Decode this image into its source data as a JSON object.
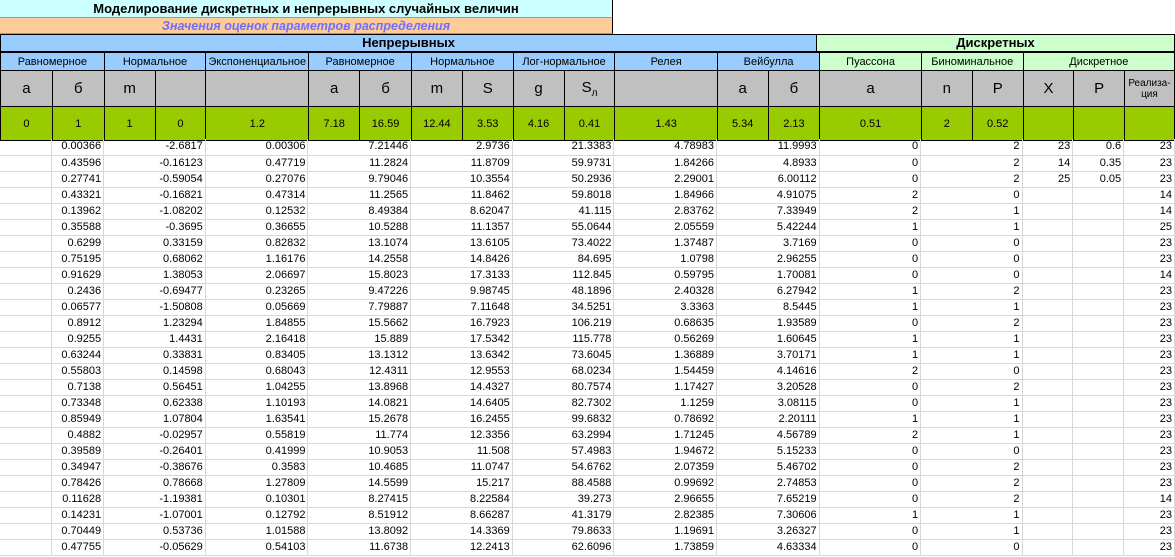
{
  "title": "Моделирование дискретных и непрерывных случайных величин",
  "subtitle": "Значения оценок параметров распределения",
  "groups": {
    "continuous": "Непрерывных",
    "discrete": "Дискретных"
  },
  "distributions": [
    "Равномерное",
    "Нормальное",
    "Экспоненциальное",
    "Равномерное",
    "Нормальное",
    "Лог-нормальное",
    "Релея",
    "Вейбулла",
    "Пуассона",
    "Биноминальное",
    "Дискретное"
  ],
  "params": [
    "a",
    "б",
    "m",
    "",
    "",
    "a",
    "б",
    "m",
    "S",
    "g",
    "Sл",
    "",
    "a",
    "б",
    "a",
    "n",
    "P",
    "X",
    "P",
    "Реализа-ция"
  ],
  "param_values": [
    "0",
    "1",
    "1",
    "0",
    "1.2",
    "7.18",
    "16.59",
    "12.44",
    "3.53",
    "4.16",
    "0.41",
    "1.43",
    "5.34",
    "2.13",
    "0.51",
    "2",
    "0.52"
  ],
  "rows": [
    [
      "",
      "0.00366",
      "-2.6817",
      "0.00306",
      "7.21446",
      "2.9736",
      "21.3383",
      "4.78983",
      "11.9993",
      "0",
      "2",
      "23",
      "0.6",
      "23"
    ],
    [
      "",
      "0.43596",
      "-0.16123",
      "0.47719",
      "11.2824",
      "11.8709",
      "59.9731",
      "1.84266",
      "4.8933",
      "0",
      "2",
      "14",
      "0.35",
      "23"
    ],
    [
      "",
      "0.27741",
      "-0.59054",
      "0.27076",
      "9.79046",
      "10.3554",
      "50.2936",
      "2.29001",
      "6.00112",
      "0",
      "2",
      "25",
      "0.05",
      "23"
    ],
    [
      "",
      "0.43321",
      "-0.16821",
      "0.47314",
      "11.2565",
      "11.8462",
      "59.8018",
      "1.84966",
      "4.91075",
      "2",
      "0",
      "",
      "",
      "14"
    ],
    [
      "",
      "0.13962",
      "-1.08202",
      "0.12532",
      "8.49384",
      "8.62047",
      "41.115",
      "2.83762",
      "7.33949",
      "2",
      "1",
      "",
      "",
      "14"
    ],
    [
      "",
      "0.35588",
      "-0.3695",
      "0.36655",
      "10.5288",
      "11.1357",
      "55.0644",
      "2.05559",
      "5.42244",
      "1",
      "1",
      "",
      "",
      "25"
    ],
    [
      "",
      "0.6299",
      "0.33159",
      "0.82832",
      "13.1074",
      "13.6105",
      "73.4022",
      "1.37487",
      "3.7169",
      "0",
      "0",
      "",
      "",
      "23"
    ],
    [
      "",
      "0.75195",
      "0.68062",
      "1.16176",
      "14.2558",
      "14.8426",
      "84.695",
      "1.0798",
      "2.96255",
      "0",
      "0",
      "",
      "",
      "23"
    ],
    [
      "",
      "0.91629",
      "1.38053",
      "2.06697",
      "15.8023",
      "17.3133",
      "112.845",
      "0.59795",
      "1.70081",
      "0",
      "0",
      "",
      "",
      "14"
    ],
    [
      "",
      "0.2436",
      "-0.69477",
      "0.23265",
      "9.47226",
      "9.98745",
      "48.1896",
      "2.40328",
      "6.27942",
      "1",
      "2",
      "",
      "",
      "23"
    ],
    [
      "",
      "0.06577",
      "-1.50808",
      "0.05669",
      "7.79887",
      "7.11648",
      "34.5251",
      "3.3363",
      "8.5445",
      "1",
      "1",
      "",
      "",
      "23"
    ],
    [
      "",
      "0.8912",
      "1.23294",
      "1.84855",
      "15.5662",
      "16.7923",
      "106.219",
      "0.68635",
      "1.93589",
      "0",
      "2",
      "",
      "",
      "23"
    ],
    [
      "",
      "0.9255",
      "1.4431",
      "2.16418",
      "15.889",
      "17.5342",
      "115.778",
      "0.56269",
      "1.60645",
      "1",
      "1",
      "",
      "",
      "23"
    ],
    [
      "",
      "0.63244",
      "0.33831",
      "0.83405",
      "13.1312",
      "13.6342",
      "73.6045",
      "1.36889",
      "3.70171",
      "1",
      "1",
      "",
      "",
      "23"
    ],
    [
      "",
      "0.55803",
      "0.14598",
      "0.68043",
      "12.4311",
      "12.9553",
      "68.0234",
      "1.54459",
      "4.14616",
      "2",
      "0",
      "",
      "",
      "23"
    ],
    [
      "",
      "0.7138",
      "0.56451",
      "1.04255",
      "13.8968",
      "14.4327",
      "80.7574",
      "1.17427",
      "3.20528",
      "0",
      "2",
      "",
      "",
      "23"
    ],
    [
      "",
      "0.73348",
      "0.62338",
      "1.10193",
      "14.0821",
      "14.6405",
      "82.7302",
      "1.1259",
      "3.08115",
      "0",
      "1",
      "",
      "",
      "23"
    ],
    [
      "",
      "0.85949",
      "1.07804",
      "1.63541",
      "15.2678",
      "16.2455",
      "99.6832",
      "0.78692",
      "2.20111",
      "1",
      "1",
      "",
      "",
      "23"
    ],
    [
      "",
      "0.4882",
      "-0.02957",
      "0.55819",
      "11.774",
      "12.3356",
      "63.2994",
      "1.71245",
      "4.56789",
      "2",
      "1",
      "",
      "",
      "23"
    ],
    [
      "",
      "0.39589",
      "-0.26401",
      "0.41999",
      "10.9053",
      "11.508",
      "57.4983",
      "1.94672",
      "5.15233",
      "0",
      "0",
      "",
      "",
      "23"
    ],
    [
      "",
      "0.34947",
      "-0.38676",
      "0.3583",
      "10.4685",
      "11.0747",
      "54.6762",
      "2.07359",
      "5.46702",
      "0",
      "2",
      "",
      "",
      "23"
    ],
    [
      "",
      "0.78426",
      "0.78668",
      "1.27809",
      "14.5599",
      "15.217",
      "88.4588",
      "0.99692",
      "2.74853",
      "0",
      "2",
      "",
      "",
      "23"
    ],
    [
      "",
      "0.11628",
      "-1.19381",
      "0.10301",
      "8.27415",
      "8.22584",
      "39.273",
      "2.96655",
      "7.65219",
      "0",
      "2",
      "",
      "",
      "14"
    ],
    [
      "",
      "0.14231",
      "-1.07001",
      "0.12792",
      "8.51912",
      "8.66287",
      "41.3179",
      "2.82385",
      "7.30606",
      "1",
      "1",
      "",
      "",
      "23"
    ],
    [
      "",
      "0.70449",
      "0.53736",
      "1.01588",
      "13.8092",
      "14.3369",
      "79.8633",
      "1.19691",
      "3.26327",
      "0",
      "1",
      "",
      "",
      "23"
    ],
    [
      "",
      "0.47755",
      "-0.05629",
      "0.54103",
      "11.6738",
      "12.2413",
      "62.6096",
      "1.73859",
      "4.63334",
      "0",
      "0",
      "",
      "",
      "23"
    ]
  ],
  "colors": {
    "title_bg": "#ccffff",
    "subtitle_bg": "#ffcc99",
    "subtitle_text": "#6f6fff",
    "continuous_bg": "#99ccff",
    "discrete_bg": "#ccffcc",
    "param_bg": "#c0c0c0",
    "values_bg": "#99cc00"
  }
}
